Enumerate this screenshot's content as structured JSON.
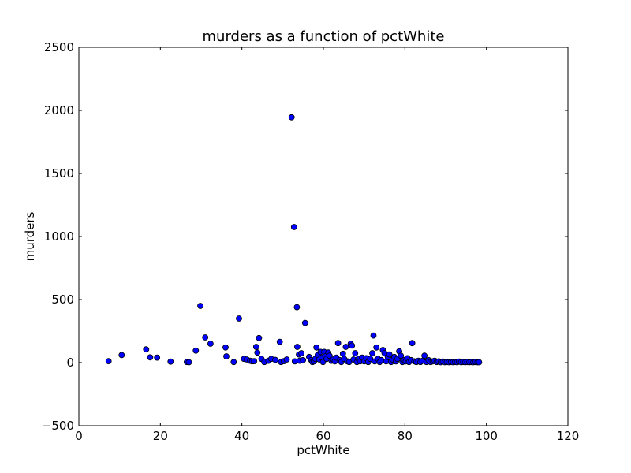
{
  "chart_data": {
    "type": "scatter",
    "title": "murders as a function of pctWhite",
    "xlabel": "pctWhite",
    "ylabel": "murders",
    "xlim": [
      0,
      120
    ],
    "ylim": [
      -500,
      2500
    ],
    "xticks": [
      0,
      20,
      40,
      60,
      80,
      100,
      120
    ],
    "yticks": [
      -500,
      0,
      500,
      1000,
      1500,
      2000,
      2500
    ],
    "xtick_labels": [
      "0",
      "20",
      "40",
      "60",
      "80",
      "100",
      "120"
    ],
    "ytick_labels": [
      "−500",
      "0",
      "500",
      "1000",
      "1500",
      "2000",
      "2500"
    ],
    "grid": false,
    "legend": false,
    "marker_color": "#0000ff",
    "marker_edge_color": "#000000",
    "points": [
      [
        7.3,
        12
      ],
      [
        10.5,
        60
      ],
      [
        16.5,
        105
      ],
      [
        17.5,
        42
      ],
      [
        19.2,
        40
      ],
      [
        22.5,
        8
      ],
      [
        26.5,
        5
      ],
      [
        27,
        3
      ],
      [
        28.7,
        95
      ],
      [
        29.8,
        450
      ],
      [
        31,
        200
      ],
      [
        32.3,
        150
      ],
      [
        36,
        120
      ],
      [
        36.2,
        50
      ],
      [
        38,
        5
      ],
      [
        39.3,
        350
      ],
      [
        40.5,
        30
      ],
      [
        41.2,
        25
      ],
      [
        42,
        15
      ],
      [
        42.5,
        10
      ],
      [
        43,
        12
      ],
      [
        43.5,
        125
      ],
      [
        43.8,
        80
      ],
      [
        44.2,
        195
      ],
      [
        44.8,
        30
      ],
      [
        45.5,
        5
      ],
      [
        46.5,
        15
      ],
      [
        47.2,
        30
      ],
      [
        48.2,
        22
      ],
      [
        49.3,
        165
      ],
      [
        49.6,
        5
      ],
      [
        50.3,
        12
      ],
      [
        51,
        25
      ],
      [
        52.2,
        1945
      ],
      [
        52.8,
        1075
      ],
      [
        53,
        10
      ],
      [
        53.5,
        440
      ],
      [
        53.6,
        125
      ],
      [
        54,
        65
      ],
      [
        54.2,
        15
      ],
      [
        54.6,
        75
      ],
      [
        55,
        20
      ],
      [
        55.5,
        315
      ],
      [
        56.5,
        45
      ],
      [
        57,
        20
      ],
      [
        57.3,
        5
      ],
      [
        57.7,
        10
      ],
      [
        58,
        30
      ],
      [
        58.3,
        120
      ],
      [
        58.6,
        60
      ],
      [
        59,
        25
      ],
      [
        59.3,
        85
      ],
      [
        59.6,
        40
      ],
      [
        59.9,
        5
      ],
      [
        60.2,
        85
      ],
      [
        60.5,
        50
      ],
      [
        60.8,
        30
      ],
      [
        61.2,
        80
      ],
      [
        61.5,
        55
      ],
      [
        62,
        15
      ],
      [
        62.4,
        25
      ],
      [
        62.8,
        10
      ],
      [
        63.2,
        40
      ],
      [
        63.6,
        155
      ],
      [
        64,
        20
      ],
      [
        64.4,
        5
      ],
      [
        64.8,
        70
      ],
      [
        65.1,
        30
      ],
      [
        65.5,
        125
      ],
      [
        65.9,
        10
      ],
      [
        66.3,
        5
      ],
      [
        66.7,
        150
      ],
      [
        67,
        135
      ],
      [
        67.4,
        25
      ],
      [
        67.8,
        75
      ],
      [
        68.2,
        5
      ],
      [
        68.6,
        30
      ],
      [
        69,
        10
      ],
      [
        69.5,
        40
      ],
      [
        70,
        10
      ],
      [
        70.5,
        35
      ],
      [
        71,
        5
      ],
      [
        71.5,
        30
      ],
      [
        72,
        75
      ],
      [
        72.3,
        215
      ],
      [
        72.6,
        10
      ],
      [
        73,
        120
      ],
      [
        73.4,
        30
      ],
      [
        73.8,
        5
      ],
      [
        74.2,
        20
      ],
      [
        74.6,
        100
      ],
      [
        75,
        75
      ],
      [
        75.4,
        10
      ],
      [
        75.8,
        45
      ],
      [
        76.2,
        65
      ],
      [
        76.6,
        5
      ],
      [
        77,
        25
      ],
      [
        77.4,
        45
      ],
      [
        77.8,
        10
      ],
      [
        78.2,
        30
      ],
      [
        78.6,
        90
      ],
      [
        79,
        55
      ],
      [
        79.4,
        5
      ],
      [
        79.8,
        20
      ],
      [
        80.2,
        10
      ],
      [
        80.6,
        35
      ],
      [
        81,
        5
      ],
      [
        81.5,
        20
      ],
      [
        81.8,
        155
      ],
      [
        82.3,
        10
      ],
      [
        82.8,
        5
      ],
      [
        83.3,
        15
      ],
      [
        83.8,
        5
      ],
      [
        84.3,
        15
      ],
      [
        84.8,
        55
      ],
      [
        85.3,
        5
      ],
      [
        85.8,
        20
      ],
      [
        86.3,
        5
      ],
      [
        86.8,
        10
      ],
      [
        87.3,
        15
      ],
      [
        87.8,
        5
      ],
      [
        88.3,
        10
      ],
      [
        88.8,
        3
      ],
      [
        89.3,
        8
      ],
      [
        89.8,
        3
      ],
      [
        90.3,
        5
      ],
      [
        90.8,
        3
      ],
      [
        91.3,
        5
      ],
      [
        91.8,
        3
      ],
      [
        92.3,
        5
      ],
      [
        92.8,
        3
      ],
      [
        93.3,
        8
      ],
      [
        93.8,
        3
      ],
      [
        94.3,
        5
      ],
      [
        94.8,
        3
      ],
      [
        95.3,
        5
      ],
      [
        95.8,
        3
      ],
      [
        96.3,
        5
      ],
      [
        96.8,
        3
      ],
      [
        97.3,
        5
      ],
      [
        97.8,
        3
      ],
      [
        98.2,
        3
      ]
    ]
  }
}
